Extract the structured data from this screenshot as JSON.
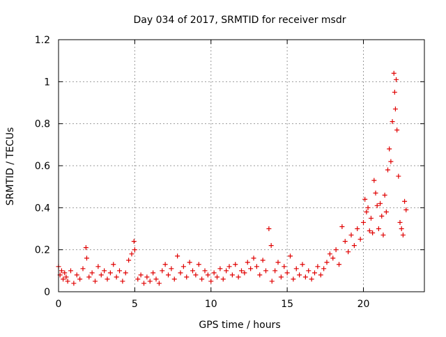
{
  "chart_data": {
    "type": "scatter",
    "title": "Day 034 of 2017, SRMTID for receiver msdr",
    "xlabel": "GPS time / hours",
    "ylabel": "SRMTID / TECUs",
    "xlim": [
      0,
      24
    ],
    "ylim": [
      0,
      1.2
    ],
    "xticks": [
      0,
      5,
      10,
      15,
      20
    ],
    "xtick_labels": [
      "0",
      "5",
      "10",
      "15",
      "20"
    ],
    "yticks": [
      0,
      0.2,
      0.4,
      0.6,
      0.8,
      1.0,
      1.2
    ],
    "ytick_labels": [
      "0",
      "0.2",
      "0.4",
      "0.6",
      "0.8",
      "1",
      "1.2"
    ],
    "grid": true,
    "marker": "+",
    "series": [
      {
        "name": "SRMTID",
        "color": "#e00000",
        "x": [
          0.0,
          0.1,
          0.2,
          0.3,
          0.4,
          0.5,
          0.6,
          0.8,
          1.0,
          1.2,
          1.4,
          1.6,
          1.8,
          1.85,
          2.0,
          2.2,
          2.4,
          2.6,
          2.8,
          3.0,
          3.2,
          3.4,
          3.6,
          3.8,
          4.0,
          4.2,
          4.4,
          4.6,
          4.8,
          4.95,
          5.0,
          5.2,
          5.4,
          5.6,
          5.8,
          6.0,
          6.2,
          6.4,
          6.6,
          6.8,
          7.0,
          7.2,
          7.4,
          7.6,
          7.8,
          8.0,
          8.2,
          8.4,
          8.6,
          8.8,
          9.0,
          9.2,
          9.4,
          9.6,
          9.8,
          10.0,
          10.2,
          10.4,
          10.6,
          10.8,
          11.0,
          11.2,
          11.4,
          11.6,
          11.8,
          12.0,
          12.2,
          12.4,
          12.6,
          12.8,
          13.0,
          13.2,
          13.4,
          13.6,
          13.8,
          13.95,
          14.0,
          14.2,
          14.4,
          14.6,
          14.8,
          15.0,
          15.2,
          15.4,
          15.6,
          15.8,
          16.0,
          16.2,
          16.4,
          16.6,
          16.8,
          17.0,
          17.2,
          17.4,
          17.6,
          17.8,
          18.0,
          18.2,
          18.4,
          18.6,
          18.8,
          19.0,
          19.2,
          19.4,
          19.6,
          19.8,
          20.0,
          20.1,
          20.2,
          20.3,
          20.4,
          20.5,
          20.6,
          20.7,
          20.8,
          20.9,
          21.0,
          21.1,
          21.2,
          21.3,
          21.4,
          21.5,
          21.6,
          21.7,
          21.8,
          21.9,
          22.0,
          22.05,
          22.1,
          22.15,
          22.2,
          22.3,
          22.4,
          22.5,
          22.6,
          22.7,
          22.8
        ],
        "y": [
          0.12,
          0.08,
          0.1,
          0.06,
          0.09,
          0.07,
          0.05,
          0.1,
          0.04,
          0.08,
          0.06,
          0.11,
          0.21,
          0.16,
          0.07,
          0.09,
          0.05,
          0.12,
          0.08,
          0.1,
          0.06,
          0.09,
          0.13,
          0.07,
          0.1,
          0.05,
          0.09,
          0.15,
          0.18,
          0.24,
          0.2,
          0.06,
          0.08,
          0.04,
          0.07,
          0.05,
          0.09,
          0.06,
          0.04,
          0.1,
          0.13,
          0.08,
          0.11,
          0.06,
          0.17,
          0.09,
          0.12,
          0.07,
          0.14,
          0.1,
          0.08,
          0.13,
          0.06,
          0.1,
          0.08,
          0.05,
          0.09,
          0.07,
          0.11,
          0.06,
          0.1,
          0.12,
          0.08,
          0.13,
          0.07,
          0.1,
          0.09,
          0.14,
          0.11,
          0.16,
          0.12,
          0.08,
          0.15,
          0.1,
          0.3,
          0.22,
          0.05,
          0.1,
          0.14,
          0.07,
          0.12,
          0.09,
          0.17,
          0.06,
          0.11,
          0.08,
          0.13,
          0.07,
          0.1,
          0.06,
          0.09,
          0.12,
          0.08,
          0.11,
          0.14,
          0.18,
          0.16,
          0.2,
          0.13,
          0.31,
          0.24,
          0.19,
          0.27,
          0.22,
          0.3,
          0.25,
          0.33,
          0.44,
          0.38,
          0.4,
          0.29,
          0.35,
          0.28,
          0.53,
          0.47,
          0.41,
          0.3,
          0.42,
          0.36,
          0.27,
          0.46,
          0.38,
          0.58,
          0.68,
          0.62,
          0.81,
          1.04,
          0.95,
          0.87,
          1.01,
          0.77,
          0.55,
          0.33,
          0.3,
          0.27,
          0.43,
          0.39
        ]
      }
    ]
  }
}
